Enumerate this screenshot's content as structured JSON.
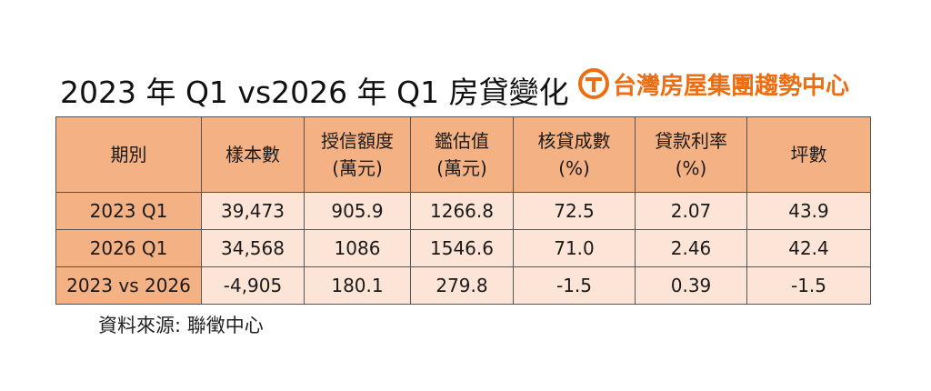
{
  "title": "2023 年 Q1 vs2026 年 Q1 房貸變化",
  "brand": {
    "name": "台灣房屋集團趨勢中心",
    "logo_icon": "taiwan-realty-logo-icon",
    "color": "#ec6d12"
  },
  "table": {
    "headers": [
      {
        "line1": "期別",
        "line2": ""
      },
      {
        "line1": "樣本數",
        "line2": ""
      },
      {
        "line1": "授信額度",
        "line2": "(萬元)"
      },
      {
        "line1": "鑑估值",
        "line2": "(萬元)"
      },
      {
        "line1": "核貸成數",
        "line2": "(%)"
      },
      {
        "line1": "貸款利率",
        "line2": "(%)"
      },
      {
        "line1": "坪數",
        "line2": ""
      }
    ],
    "rows": [
      {
        "period": "2023 Q1",
        "cells": [
          "39,473",
          "905.9",
          "1266.8",
          "72.5",
          "2.07",
          "43.9"
        ]
      },
      {
        "period": "2026 Q1",
        "cells": [
          "34,568",
          "1086",
          "1546.6",
          "71.0",
          "2.46",
          "42.4"
        ]
      },
      {
        "period": "2023 vs 2026",
        "cells": [
          "-4,905",
          "180.1",
          "279.8",
          "-1.5",
          "0.39",
          "-1.5"
        ]
      }
    ],
    "header_color": "#f4b183",
    "cell_color": "#fce4d6"
  },
  "source": "資料來源:  聯徵中心"
}
